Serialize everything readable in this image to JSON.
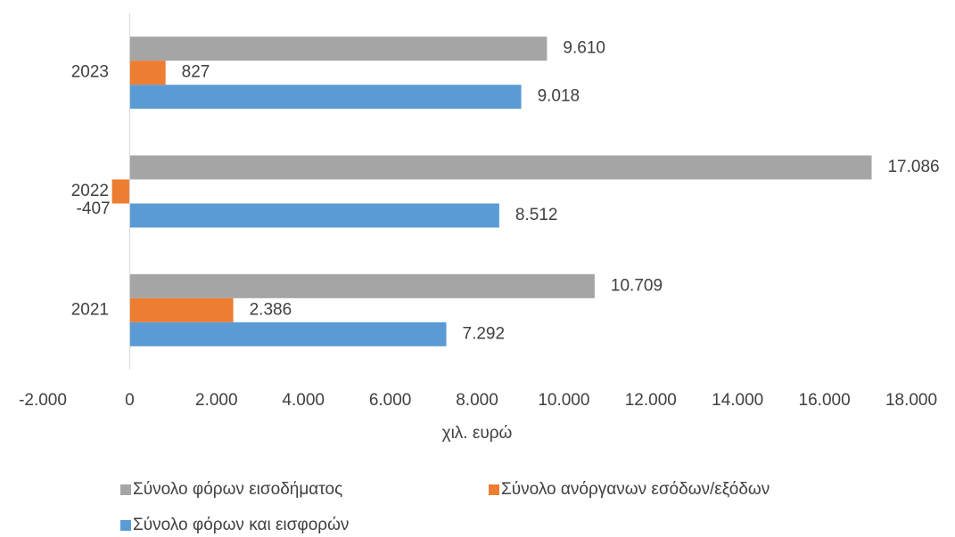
{
  "chart_data": {
    "type": "bar",
    "orientation": "horizontal",
    "categories": [
      "2021",
      "2022",
      "2023"
    ],
    "series": [
      {
        "name": "Σύνολο φόρων εισοδήματος",
        "color": "#a5a5a5",
        "values": [
          10709,
          17086,
          9610
        ],
        "value_labels": [
          "10.709",
          "17.086",
          "9.610"
        ]
      },
      {
        "name": "Σύνολο ανόργανων εσόδων/εξόδων",
        "color": "#ed7d31",
        "values": [
          2386,
          -407,
          827
        ],
        "value_labels": [
          "2.386",
          "-407",
          "827"
        ]
      },
      {
        "name": "Σύνολο φόρων και εισφορών",
        "color": "#5b9bd5",
        "values": [
          7292,
          8512,
          9018
        ],
        "value_labels": [
          "7.292",
          "8.512",
          "9.018"
        ]
      }
    ],
    "xlabel": "χιλ. ευρώ",
    "xlim": [
      -2000,
      18000
    ],
    "xticks": [
      {
        "value": -2000,
        "label": "-2.000"
      },
      0,
      {
        "value": 2000,
        "label": "2.000"
      },
      {
        "value": 4000,
        "label": "4.000"
      },
      {
        "value": 6000,
        "label": "6.000"
      },
      {
        "value": 8000,
        "label": "8.000"
      },
      {
        "value": 10000,
        "label": "10.000"
      },
      {
        "value": 12000,
        "label": "12.000"
      },
      {
        "value": 14000,
        "label": "14.000"
      },
      {
        "value": 16000,
        "label": "16.000"
      },
      {
        "value": 18000,
        "label": "18.000"
      }
    ],
    "grid": false,
    "legend": "bottom"
  }
}
